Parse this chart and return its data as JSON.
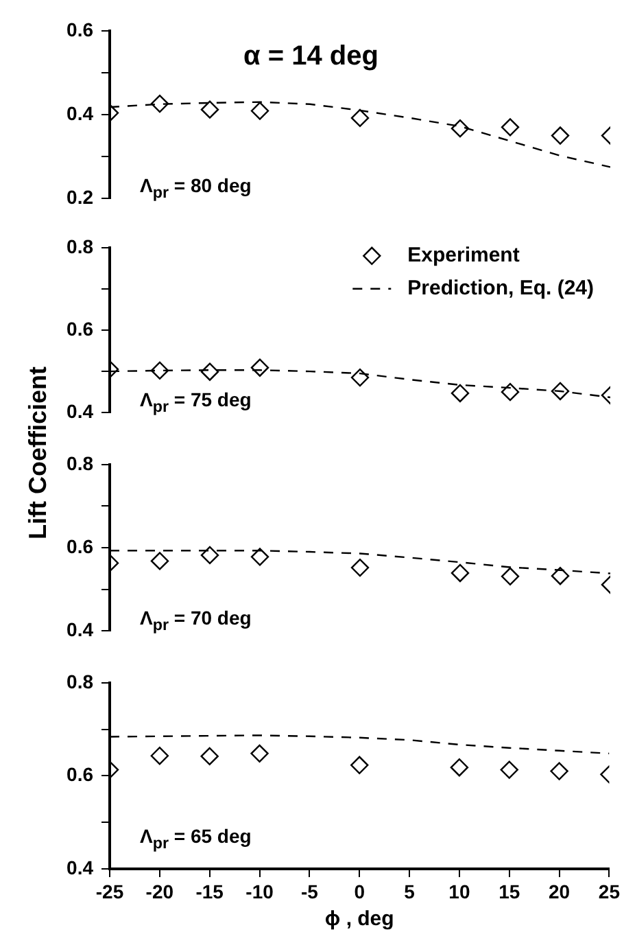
{
  "chart_data": [
    {
      "type": "scatter",
      "title": "α = 14 deg",
      "annotations": [
        "Λ$_{pr}$ = 80 deg"
      ],
      "xlim": [
        -25,
        25
      ],
      "xticks": [
        -25,
        -20,
        -15,
        -10,
        -5,
        0,
        5,
        10,
        15,
        20,
        25
      ],
      "ylim": [
        0.2,
        0.6
      ],
      "yticks": [
        0.2,
        {
          "value": 0.3,
          "label": null
        },
        0.4,
        {
          "value": 0.5,
          "label": null
        },
        0.6
      ],
      "tick_labels": "y",
      "series": [
        {
          "type": "scatter",
          "marker": "diamond",
          "color": "#000000",
          "x": [
            -25,
            -20,
            -15,
            -10,
            0,
            10,
            15,
            20,
            25
          ],
          "values": [
            0.404,
            0.426,
            0.412,
            0.409,
            0.392,
            0.367,
            0.37,
            0.35,
            0.35
          ]
        },
        {
          "type": "line",
          "marker": "none",
          "line_style": "dashed",
          "color": "#000000",
          "x": [
            -25,
            -20,
            -15,
            -10,
            -5,
            0,
            5,
            10,
            15,
            20,
            25
          ],
          "values": [
            0.418,
            0.425,
            0.428,
            0.43,
            0.425,
            0.41,
            0.392,
            0.372,
            0.337,
            0.302,
            0.275
          ]
        }
      ]
    },
    {
      "type": "scatter",
      "ylabel": "Lift Coefficient",
      "annotations": [
        "Λ$_{pr}$ = 75 deg"
      ],
      "legend": "top right",
      "xlim": [
        -25,
        25
      ],
      "xticks": [
        -25,
        -20,
        -15,
        -10,
        -5,
        0,
        5,
        10,
        15,
        20,
        25
      ],
      "ylim": [
        0.4,
        0.8
      ],
      "yticks": [
        0.4,
        {
          "value": 0.5,
          "label": null
        },
        0.6,
        {
          "value": 0.7,
          "label": null
        },
        0.8
      ],
      "tick_labels": "y",
      "series": [
        {
          "type": "scatter",
          "name": "Experiment",
          "marker": "diamond",
          "color": "#000000",
          "x": [
            -25,
            -20,
            -15,
            -10,
            0,
            10,
            15,
            20,
            25
          ],
          "values": [
            0.505,
            0.502,
            0.499,
            0.509,
            0.485,
            0.447,
            0.45,
            0.452,
            0.442
          ]
        },
        {
          "type": "line",
          "name": "Prediction, Eq. (24)",
          "marker": "none",
          "line_style": "dashed",
          "color": "#000000",
          "x": [
            -25,
            -20,
            -15,
            -10,
            -5,
            0,
            5,
            10,
            15,
            20,
            25
          ],
          "values": [
            0.5,
            0.502,
            0.503,
            0.503,
            0.5,
            0.495,
            0.48,
            0.467,
            0.46,
            0.452,
            0.437
          ]
        }
      ]
    },
    {
      "type": "scatter",
      "annotations": [
        "Λ$_{pr}$ = 70 deg"
      ],
      "xlim": [
        -25,
        25
      ],
      "xticks": [
        -25,
        -20,
        -15,
        -10,
        -5,
        0,
        5,
        10,
        15,
        20,
        25
      ],
      "ylim": [
        0.4,
        0.8
      ],
      "yticks": [
        0.4,
        {
          "value": 0.5,
          "label": null
        },
        0.6,
        {
          "value": 0.7,
          "label": null
        },
        0.8
      ],
      "tick_labels": "y",
      "series": [
        {
          "type": "scatter",
          "marker": "diamond",
          "color": "#000000",
          "x": [
            -25,
            -20,
            -15,
            -10,
            0,
            10,
            15,
            20,
            25
          ],
          "values": [
            0.563,
            0.568,
            0.582,
            0.578,
            0.552,
            0.539,
            0.531,
            0.532,
            0.511
          ]
        },
        {
          "type": "line",
          "marker": "none",
          "line_style": "dashed",
          "color": "#000000",
          "x": [
            -25,
            -20,
            -15,
            -10,
            -5,
            0,
            5,
            10,
            15,
            20,
            25
          ],
          "values": [
            0.593,
            0.593,
            0.593,
            0.593,
            0.59,
            0.586,
            0.576,
            0.565,
            0.553,
            0.546,
            0.538
          ]
        }
      ]
    },
    {
      "type": "scatter",
      "xlabel": "ϕ , deg",
      "annotations": [
        "Λ$_{pr}$ = 65 deg"
      ],
      "xlim": [
        -25,
        25
      ],
      "xticks": [
        -25,
        -20,
        -15,
        -10,
        -5,
        0,
        5,
        10,
        15,
        20,
        25
      ],
      "ylim": [
        0.4,
        0.8
      ],
      "yticks": [
        0.4,
        {
          "value": 0.5,
          "label": null
        },
        0.6,
        {
          "value": 0.7,
          "label": null
        },
        0.8
      ],
      "series": [
        {
          "type": "scatter",
          "marker": "diamond",
          "color": "#000000",
          "x": [
            -25,
            -20,
            -15,
            -10,
            0,
            10,
            15,
            20,
            25
          ],
          "values": [
            0.613,
            0.643,
            0.642,
            0.648,
            0.623,
            0.618,
            0.613,
            0.61,
            0.603
          ]
        },
        {
          "type": "line",
          "marker": "none",
          "line_style": "dashed",
          "color": "#000000",
          "x": [
            -25,
            -20,
            -15,
            -10,
            -5,
            0,
            5,
            10,
            15,
            20,
            25
          ],
          "values": [
            0.684,
            0.685,
            0.686,
            0.687,
            0.685,
            0.682,
            0.677,
            0.667,
            0.66,
            0.654,
            0.648
          ]
        }
      ]
    }
  ]
}
